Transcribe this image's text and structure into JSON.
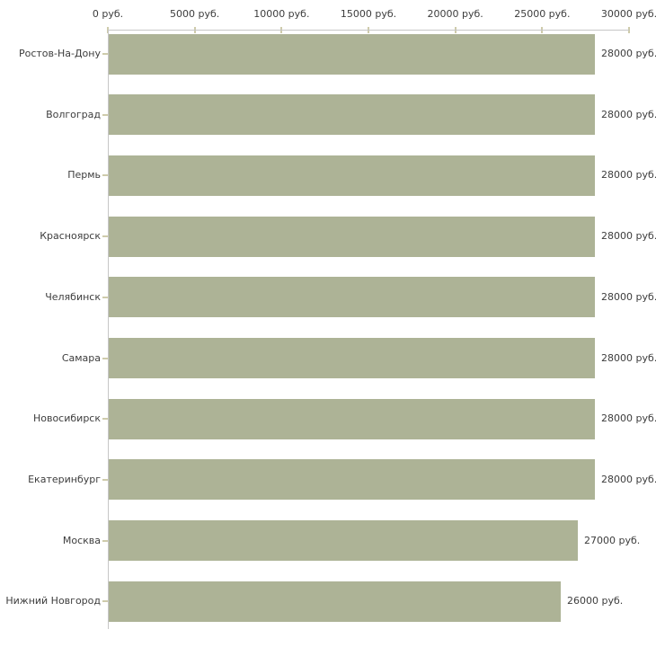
{
  "chart_data": {
    "type": "bar",
    "orientation": "horizontal",
    "title": "",
    "categories": [
      "Ростов-На-Дону",
      "Волгоград",
      "Пермь",
      "Красноярск",
      "Челябинск",
      "Самара",
      "Новосибирск",
      "Екатеринбург",
      "Москва",
      "Нижний Новгород"
    ],
    "values": [
      28000,
      28000,
      28000,
      28000,
      28000,
      28000,
      28000,
      28000,
      27000,
      26000
    ],
    "value_labels": [
      "28000 руб.",
      "28000 руб.",
      "28000 руб.",
      "28000 руб.",
      "28000 руб.",
      "28000 руб.",
      "28000 руб.",
      "28000 руб.",
      "27000 руб.",
      "26000 руб."
    ],
    "x_ticks": [
      {
        "value": 0,
        "label": "0 руб."
      },
      {
        "value": 5000,
        "label": "5000 руб."
      },
      {
        "value": 10000,
        "label": "10000 руб."
      },
      {
        "value": 15000,
        "label": "15000 руб."
      },
      {
        "value": 20000,
        "label": "20000 руб."
      },
      {
        "value": 25000,
        "label": "25000 руб."
      },
      {
        "value": 30000,
        "label": "30000 руб."
      }
    ],
    "xlim": [
      0,
      30000
    ],
    "unit": "руб.",
    "grid": false,
    "legend": "none",
    "colors": {
      "bar": "#adb396",
      "axis_line": "#c6c6c6",
      "tick_mark": "#cecbab",
      "text": "#3d3d3d",
      "background": "#ffffff"
    }
  }
}
